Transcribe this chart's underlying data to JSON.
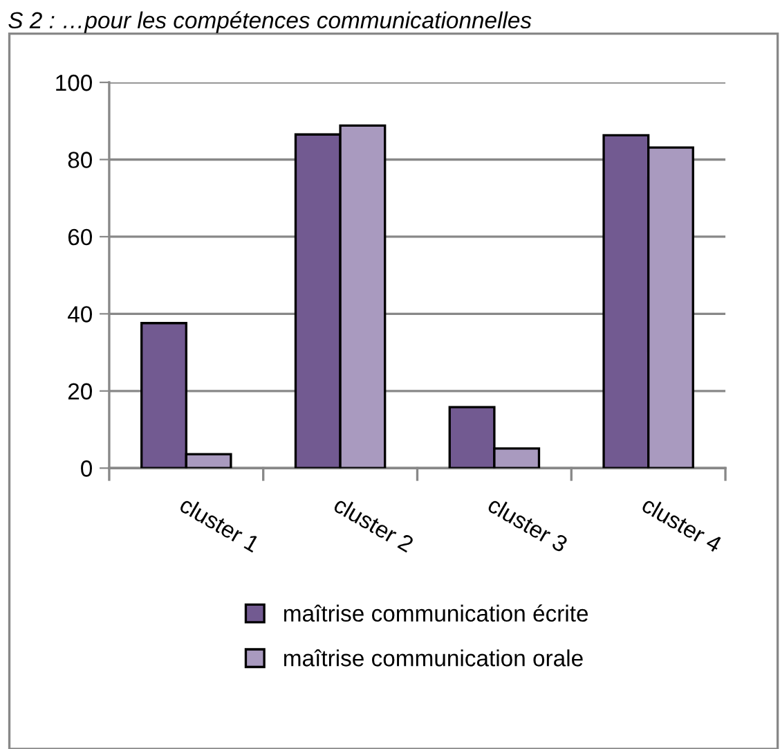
{
  "chart_data": {
    "type": "bar",
    "title": "S 2 : …pour les compétences communicationnelles",
    "categories": [
      "cluster 1",
      "cluster 2",
      "cluster 3",
      "cluster 4"
    ],
    "series": [
      {
        "name": "maîtrise communication écrite",
        "color": "#725a91",
        "values": [
          37.6,
          86.5,
          15.8,
          86.3
        ]
      },
      {
        "name": "maîtrise communication orale",
        "color": "#a99abf",
        "values": [
          3.6,
          88.8,
          5.1,
          83.1
        ]
      }
    ],
    "ylim": [
      0,
      100
    ],
    "yticks": [
      0,
      20,
      40,
      60,
      80,
      100
    ],
    "grid": "y",
    "legend": "bottom"
  }
}
